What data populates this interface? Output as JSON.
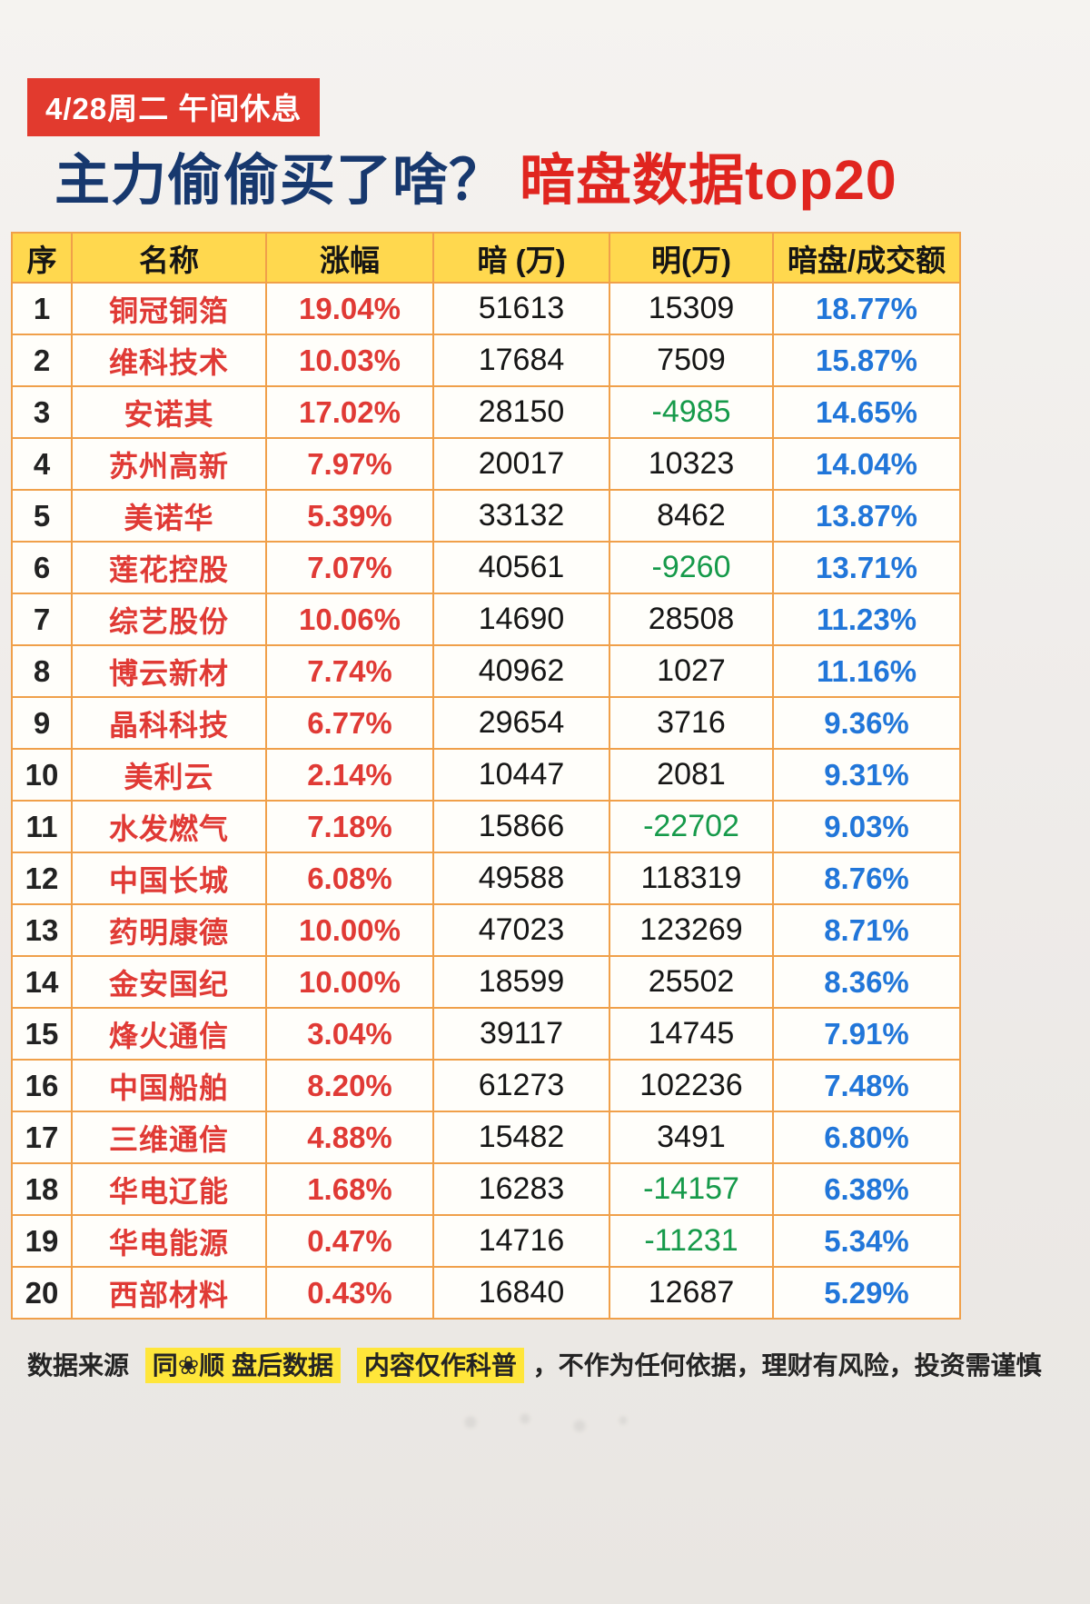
{
  "badge": "4/28周二 午间休息",
  "title": {
    "part1": "主力偷偷买了啥？",
    "part2": "暗盘数据top20"
  },
  "chart_data": {
    "type": "table",
    "title": "主力偷偷买了啥？暗盘数据top20",
    "columns": [
      "序",
      "名称",
      "涨幅",
      "暗 (万)",
      "明(万)",
      "暗盘/成交额"
    ],
    "rows": [
      [
        "1",
        "铜冠铜箔",
        "19.04%",
        "51613",
        "15309",
        "18.77%"
      ],
      [
        "2",
        "维科技术",
        "10.03%",
        "17684",
        "7509",
        "15.87%"
      ],
      [
        "3",
        "安诺其",
        "17.02%",
        "28150",
        "-4985",
        "14.65%"
      ],
      [
        "4",
        "苏州高新",
        "7.97%",
        "20017",
        "10323",
        "14.04%"
      ],
      [
        "5",
        "美诺华",
        "5.39%",
        "33132",
        "8462",
        "13.87%"
      ],
      [
        "6",
        "莲花控股",
        "7.07%",
        "40561",
        "-9260",
        "13.71%"
      ],
      [
        "7",
        "综艺股份",
        "10.06%",
        "14690",
        "28508",
        "11.23%"
      ],
      [
        "8",
        "博云新材",
        "7.74%",
        "40962",
        "1027",
        "11.16%"
      ],
      [
        "9",
        "晶科科技",
        "6.77%",
        "29654",
        "3716",
        "9.36%"
      ],
      [
        "10",
        "美利云",
        "2.14%",
        "10447",
        "2081",
        "9.31%"
      ],
      [
        "11",
        "水发燃气",
        "7.18%",
        "15866",
        "-22702",
        "9.03%"
      ],
      [
        "12",
        "中国长城",
        "6.08%",
        "49588",
        "118319",
        "8.76%"
      ],
      [
        "13",
        "药明康德",
        "10.00%",
        "47023",
        "123269",
        "8.71%"
      ],
      [
        "14",
        "金安国纪",
        "10.00%",
        "18599",
        "25502",
        "8.36%"
      ],
      [
        "15",
        "烽火通信",
        "3.04%",
        "39117",
        "14745",
        "7.91%"
      ],
      [
        "16",
        "中国船舶",
        "8.20%",
        "61273",
        "102236",
        "7.48%"
      ],
      [
        "17",
        "三维通信",
        "4.88%",
        "15482",
        "3491",
        "6.80%"
      ],
      [
        "18",
        "华电辽能",
        "1.68%",
        "16283",
        "-14157",
        "6.38%"
      ],
      [
        "19",
        "华电能源",
        "0.47%",
        "14716",
        "-11231",
        "5.34%"
      ],
      [
        "20",
        "西部材料",
        "0.43%",
        "16840",
        "12687",
        "5.29%"
      ]
    ]
  },
  "footer": {
    "prefix": "数据来源",
    "highlight1": "同❀顺  盘后数据",
    "highlight2": "内容仅作科普",
    "suffix": "，不作为任何依据，理财有风险，投资需谨慎"
  },
  "colors": {
    "badge_bg": "#e23a2e",
    "title_navy": "#17386e",
    "title_red": "#e0251f",
    "table_border": "#f0a04a",
    "header_bg": "#ffd84e",
    "name_red": "#e03a35",
    "value_blue": "#2176d9",
    "negative_green": "#169a4a",
    "highlight_yellow": "#ffe63a"
  }
}
